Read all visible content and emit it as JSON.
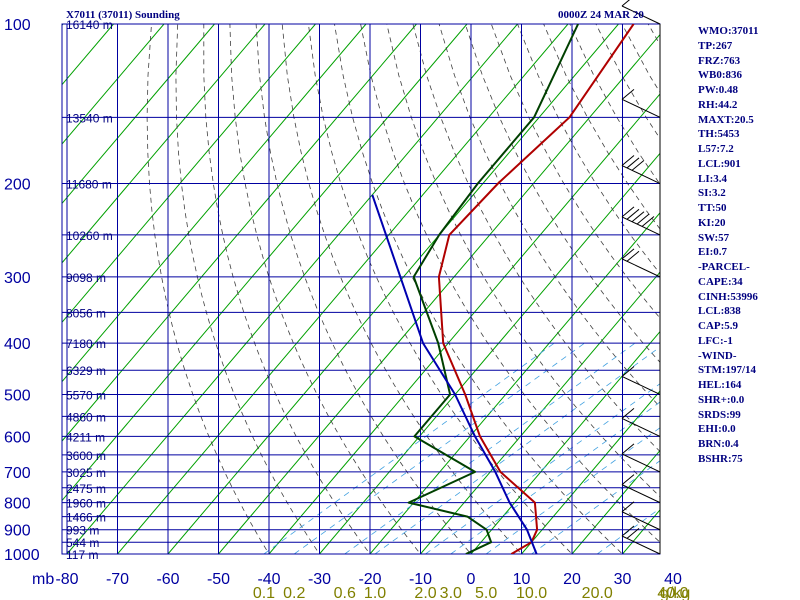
{
  "header": {
    "title": "X7011 (37011) Sounding",
    "datetime": "0000Z 24 MAR 20"
  },
  "indices": [
    "WMO:37011",
    "TP:267",
    "FRZ:763",
    "WB0:836",
    "PW:0.48",
    "RH:44.2",
    "MAXT:20.5",
    "TH:5453",
    "L57:7.2",
    "LCL:901",
    "LI:3.4",
    "SI:3.2",
    "TT:50",
    "KI:20",
    "SW:57",
    "EI:0.7",
    "-PARCEL-",
    "CAPE:34",
    "CINH:53996",
    "LCL:838",
    "CAP:5.9",
    "LFC:-1",
    "-WIND-",
    "STM:197/14",
    "HEL:164",
    "SHR+:0.0",
    "SRDS:99",
    "EHI:0.0",
    "BRN:0.4",
    "BSHR:75"
  ],
  "colors": {
    "grid": "#0000a0",
    "temperature": "#b00000",
    "dewpoint": "#004000",
    "parcel": "#0000b0",
    "isotherms": "#00a000",
    "dry_adiabats": "#404040",
    "mixing_ratio": "#40a0e0",
    "mixing_ratio_labels": "#808000",
    "text": "#000080"
  },
  "chart_data": {
    "type": "line",
    "title": "X7011 (37011) Sounding",
    "x_axis_unit_label": "mb",
    "temp_ticks": [
      -80,
      -70,
      -60,
      -50,
      -40,
      -30,
      -20,
      -10,
      0,
      10,
      20,
      30,
      40
    ],
    "pressure_ticks": [
      100,
      200,
      300,
      400,
      500,
      600,
      700,
      800,
      900,
      1000
    ],
    "mixing_ratio_ticks": [
      {
        "label": "0.1",
        "t": -41
      },
      {
        "label": "0.2",
        "t": -35
      },
      {
        "label": "0.6",
        "t": -25
      },
      {
        "label": "1.0",
        "t": -19
      },
      {
        "label": "2.0",
        "t": -9
      },
      {
        "label": "3.0",
        "t": -4
      },
      {
        "label": "5.0",
        "t": 3
      },
      {
        "label": "10.0",
        "t": 12
      },
      {
        "label": "20.0",
        "t": 25
      },
      {
        "label": "40.0",
        "t": 40
      }
    ],
    "mixing_ratio_unit": "g/kg",
    "height_labels": [
      {
        "p": 100,
        "label": "16140 m"
      },
      {
        "p": 150,
        "label": "13540 m"
      },
      {
        "p": 200,
        "label": "11680 m"
      },
      {
        "p": 250,
        "label": "10260 m"
      },
      {
        "p": 300,
        "label": "9098 m"
      },
      {
        "p": 350,
        "label": "8056 m"
      },
      {
        "p": 400,
        "label": "7180 m"
      },
      {
        "p": 450,
        "label": "6329 m"
      },
      {
        "p": 500,
        "label": "5570 m"
      },
      {
        "p": 550,
        "label": "4860 m"
      },
      {
        "p": 600,
        "label": "4211 m"
      },
      {
        "p": 650,
        "label": "3600 m"
      },
      {
        "p": 700,
        "label": "3025 m"
      },
      {
        "p": 750,
        "label": "2475 m"
      },
      {
        "p": 800,
        "label": "1960 m"
      },
      {
        "p": 850,
        "label": "1466 m"
      },
      {
        "p": 900,
        "label": "993 m"
      },
      {
        "p": 950,
        "label": "544 m"
      },
      {
        "p": 1000,
        "label": "117 m"
      }
    ],
    "series": [
      {
        "key": "temperature",
        "points": [
          [
            -57,
            100
          ],
          [
            -54,
            150
          ],
          [
            -57,
            200
          ],
          [
            -58,
            250
          ],
          [
            -53,
            300
          ],
          [
            -41,
            400
          ],
          [
            -28,
            500
          ],
          [
            -18,
            600
          ],
          [
            -8,
            700
          ],
          [
            4,
            800
          ],
          [
            9,
            900
          ],
          [
            10,
            950
          ],
          [
            8,
            1000
          ]
        ]
      },
      {
        "key": "dewpoint",
        "points": [
          [
            -68,
            100
          ],
          [
            -61,
            150
          ],
          [
            -61,
            200
          ],
          [
            -60,
            250
          ],
          [
            -58,
            300
          ],
          [
            -42,
            400
          ],
          [
            -31,
            500
          ],
          [
            -31,
            600
          ],
          [
            -13,
            700
          ],
          [
            -21,
            800
          ],
          [
            -7,
            850
          ],
          [
            -1,
            900
          ],
          [
            2,
            950
          ],
          [
            -1,
            1000
          ]
        ]
      },
      {
        "key": "parcel",
        "points": [
          [
            -80,
            210
          ],
          [
            -45,
            400
          ],
          [
            -30,
            500
          ],
          [
            -19,
            600
          ],
          [
            -9,
            700
          ],
          [
            -1,
            800
          ],
          [
            7,
            900
          ],
          [
            13,
            1000
          ]
        ]
      }
    ],
    "wind_barbs": [
      {
        "p": 100,
        "barbs": 1
      },
      {
        "p": 150,
        "barbs": 1
      },
      {
        "p": 200,
        "barbs": 3
      },
      {
        "p": 250,
        "barbs": 5
      },
      {
        "p": 300,
        "barbs": 2
      },
      {
        "p": 500,
        "barbs": 1
      },
      {
        "p": 600,
        "barbs": 1
      },
      {
        "p": 700,
        "barbs": 1
      },
      {
        "p": 800,
        "barbs": 1
      },
      {
        "p": 900,
        "barbs": 1
      },
      {
        "p": 1000,
        "barbs": 2
      }
    ]
  }
}
